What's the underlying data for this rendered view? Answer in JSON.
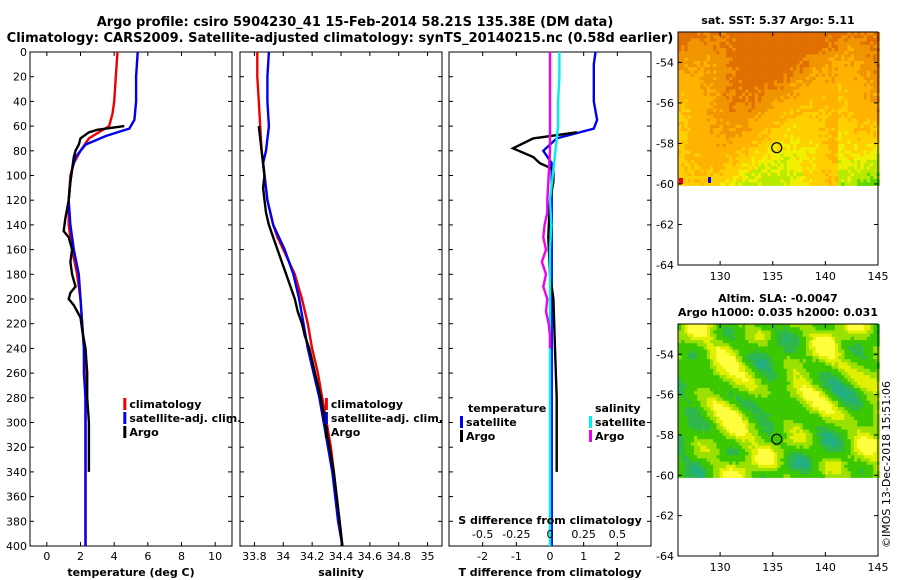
{
  "title_line1": "Argo profile: csiro 5904230_41 15-Feb-2014 58.21S 135.38E (DM data)",
  "title_line2": "Climatology: CARS2009. Satellite-adjusted climatology: synTS_20140215.nc (0.58d earlier)",
  "watermark": "©IMOS 13-Dec-2018 15:51:06",
  "depth_ticks": [
    0,
    20,
    40,
    60,
    80,
    100,
    120,
    140,
    160,
    180,
    200,
    220,
    240,
    260,
    280,
    300,
    320,
    340,
    360,
    380,
    400
  ],
  "colors": {
    "climatology": "#ee0000",
    "satellite": "#0000ee",
    "argo": "#000000",
    "sal_sat": "#00eeee",
    "sal_argo": "#ee00ee"
  },
  "chart_data": [
    {
      "type": "line",
      "name": "temperature",
      "xlabel": "temperature (deg C)",
      "xlim": [
        -1,
        11
      ],
      "ylim": [
        0,
        400
      ],
      "xticks": [
        0,
        2,
        4,
        6,
        8,
        10
      ],
      "xtick_labels": [
        "0",
        "2",
        "4",
        "6",
        "8",
        "10"
      ],
      "legend": [
        "climatology",
        "satellite-adj. clim.",
        "Argo"
      ],
      "series": [
        {
          "name": "climatology",
          "color": "#ee0000",
          "depth": [
            0,
            20,
            40,
            50,
            60,
            70,
            80,
            90,
            100,
            120,
            140,
            160,
            180,
            200,
            220,
            240,
            260,
            280,
            300,
            320,
            340,
            360,
            380,
            400
          ],
          "values": [
            4.2,
            4.1,
            4.0,
            3.9,
            3.7,
            2.5,
            2.0,
            1.6,
            1.4,
            1.3,
            1.3,
            1.5,
            1.8,
            2.0,
            2.1,
            2.2,
            2.25,
            2.3,
            2.3,
            2.3,
            2.3,
            2.3,
            2.3,
            2.3
          ]
        },
        {
          "name": "satellite-adj. clim.",
          "color": "#0000ee",
          "depth": [
            0,
            20,
            40,
            55,
            62,
            68,
            75,
            85,
            95,
            105,
            120,
            140,
            160,
            180,
            200,
            220,
            240,
            260,
            280,
            300,
            320,
            340,
            360,
            380,
            400
          ],
          "values": [
            5.4,
            5.3,
            5.3,
            5.2,
            4.9,
            3.5,
            2.3,
            1.7,
            1.5,
            1.4,
            1.3,
            1.4,
            1.6,
            1.9,
            2.0,
            2.1,
            2.2,
            2.2,
            2.3,
            2.3,
            2.3,
            2.3,
            2.3,
            2.3,
            2.3
          ]
        },
        {
          "name": "Argo",
          "color": "#000000",
          "depth": [
            60,
            63,
            65,
            70,
            75,
            80,
            85,
            95,
            105,
            120,
            135,
            145,
            150,
            160,
            170,
            180,
            190,
            195,
            200,
            205,
            215,
            225,
            240,
            260,
            280,
            300,
            320,
            340
          ],
          "values": [
            4.6,
            3.0,
            2.5,
            2.0,
            1.9,
            1.7,
            1.6,
            1.5,
            1.4,
            1.3,
            1.1,
            1.0,
            1.3,
            1.5,
            1.4,
            1.5,
            1.7,
            1.4,
            1.3,
            1.6,
            2.0,
            2.1,
            2.3,
            2.4,
            2.4,
            2.5,
            2.5,
            2.5
          ]
        }
      ]
    },
    {
      "type": "line",
      "name": "salinity",
      "xlabel": "salinity",
      "xlim": [
        33.7,
        35.1
      ],
      "ylim": [
        0,
        400
      ],
      "xticks": [
        33.8,
        34,
        34.2,
        34.4,
        34.6,
        34.8,
        35
      ],
      "xtick_labels": [
        "33.8",
        "34",
        "34.2",
        "34.4",
        "34.6",
        "34.8",
        "35"
      ],
      "legend": [
        "climatology",
        "satellite-adj. clim.",
        "Argo"
      ],
      "series": [
        {
          "name": "climatology",
          "color": "#ee0000",
          "depth": [
            0,
            20,
            40,
            60,
            80,
            100,
            120,
            140,
            150,
            160,
            180,
            200,
            220,
            240,
            260,
            280,
            300,
            320,
            340,
            360,
            380,
            400
          ],
          "values": [
            33.82,
            33.82,
            33.83,
            33.84,
            33.85,
            33.87,
            33.89,
            33.93,
            33.96,
            34.0,
            34.08,
            34.13,
            34.17,
            34.2,
            34.24,
            34.27,
            34.3,
            34.33,
            34.35,
            34.37,
            34.39,
            34.41
          ]
        },
        {
          "name": "satellite-adj. clim.",
          "color": "#0000ee",
          "depth": [
            0,
            20,
            40,
            60,
            80,
            90,
            100,
            120,
            140,
            160,
            180,
            200,
            220,
            240,
            260,
            280,
            300,
            320,
            340,
            360,
            380,
            400
          ],
          "values": [
            33.9,
            33.89,
            33.89,
            33.9,
            33.88,
            33.86,
            33.87,
            33.89,
            33.93,
            34.01,
            34.07,
            34.11,
            34.14,
            34.17,
            34.21,
            34.25,
            34.28,
            34.31,
            34.34,
            34.36,
            34.38,
            34.41
          ]
        },
        {
          "name": "Argo",
          "color": "#000000",
          "depth": [
            60,
            70,
            80,
            90,
            100,
            110,
            120,
            130,
            140,
            150,
            160,
            170,
            180,
            190,
            200,
            210,
            220,
            230,
            240,
            260,
            280,
            300,
            320,
            340,
            360,
            380,
            400
          ],
          "values": [
            33.83,
            33.84,
            33.85,
            33.86,
            33.87,
            33.86,
            33.87,
            33.88,
            33.9,
            33.93,
            33.96,
            33.99,
            34.02,
            34.05,
            34.08,
            34.1,
            34.13,
            34.15,
            34.18,
            34.22,
            34.26,
            34.29,
            34.32,
            34.35,
            34.37,
            34.39,
            34.41
          ]
        }
      ]
    },
    {
      "type": "line",
      "name": "difference",
      "xlabel": "T difference from climatology",
      "top_axis_label": "S difference from climatology",
      "xlim": [
        -3,
        3
      ],
      "ylim": [
        0,
        400
      ],
      "xticks": [
        -2,
        -1,
        0,
        1,
        2
      ],
      "xtick_labels": [
        "-2",
        "-1",
        "0",
        "1",
        "2"
      ],
      "s_ticks": [
        -0.5,
        -0.25,
        0,
        0.25,
        0.5
      ],
      "s_tick_labels": [
        "-0.5",
        "-0.25",
        "0",
        "0.25",
        "0.5"
      ],
      "legend_temperature_title": "temperature",
      "legend_salinity_title": "salinity",
      "legend_temperature": [
        "satellite",
        "Argo"
      ],
      "legend_salinity": [
        "satellite",
        "Argo"
      ],
      "series": [
        {
          "name": "T satellite",
          "color": "#0000ee",
          "depth": [
            0,
            10,
            20,
            40,
            55,
            62,
            70,
            80,
            90,
            100,
            120,
            140,
            160,
            180,
            200,
            240,
            280,
            320,
            360,
            400
          ],
          "values": [
            1.35,
            1.3,
            1.3,
            1.3,
            1.4,
            1.3,
            0.2,
            -0.2,
            0.05,
            0.05,
            0.05,
            0.05,
            0.05,
            0.05,
            0.05,
            0.05,
            0.05,
            0.05,
            0.05,
            0.05
          ]
        },
        {
          "name": "T Argo",
          "color": "#000000",
          "depth": [
            65,
            70,
            78,
            85,
            90,
            95,
            105,
            120,
            150,
            180,
            200,
            240,
            280,
            320,
            340
          ],
          "values": [
            0.8,
            -0.5,
            -1.1,
            -0.5,
            -0.3,
            0.1,
            0.1,
            0.0,
            -0.05,
            0.0,
            0.1,
            0.15,
            0.2,
            0.2,
            0.2
          ]
        },
        {
          "name": "S satellite",
          "color": "#00eeee",
          "depth": [
            0,
            20,
            40,
            60,
            80,
            100,
            120,
            140,
            160,
            180,
            200,
            220,
            240,
            280,
            320,
            360,
            400
          ],
          "values": [
            0.07,
            0.07,
            0.06,
            0.06,
            0.04,
            0.02,
            0.0,
            0.01,
            0.0,
            0.0,
            0.0,
            0.0,
            0.0,
            0.0,
            0.0,
            0.0,
            0.0
          ]
        },
        {
          "name": "S Argo",
          "color": "#ee00ee",
          "depth": [
            0,
            20,
            40,
            60,
            80,
            100,
            120,
            130,
            140,
            150,
            160,
            170,
            180,
            190,
            200,
            210,
            220,
            230,
            240
          ],
          "values": [
            0.0,
            0.0,
            0.0,
            0.0,
            0.0,
            -0.01,
            -0.02,
            -0.02,
            -0.04,
            -0.05,
            -0.03,
            -0.06,
            -0.03,
            -0.05,
            -0.02,
            -0.03,
            -0.01,
            0.0,
            0.0
          ]
        }
      ]
    },
    {
      "type": "heatmap",
      "name": "sst_map",
      "title": "sat. SST: 5.37 Argo: 5.11",
      "xlim": [
        126,
        145
      ],
      "ylim": [
        -64,
        -52.5
      ],
      "data_ylim": [
        -60,
        -52.5
      ],
      "xticks": [
        130,
        135,
        140,
        145
      ],
      "xtick_labels": [
        "130",
        "135",
        "140",
        "145"
      ],
      "yticks": [
        -54,
        -56,
        -58,
        -60,
        -62,
        -64
      ],
      "ytick_labels": [
        "-54",
        "-56",
        "-58",
        "-60",
        "-62",
        "-64"
      ],
      "argo_position": {
        "lon": 135.38,
        "lat": -58.21
      }
    },
    {
      "type": "heatmap",
      "name": "sla_map",
      "title_line1": "Altim. SLA: -0.0047",
      "title_line2": "Argo h1000: 0.035 h2000: 0.031",
      "xlim": [
        126,
        145
      ],
      "ylim": [
        -64,
        -52.5
      ],
      "data_ylim": [
        -60,
        -52.5
      ],
      "xticks": [
        130,
        135,
        140,
        145
      ],
      "xtick_labels": [
        "130",
        "135",
        "140",
        "145"
      ],
      "yticks": [
        -54,
        -56,
        -58,
        -60,
        -62,
        -64
      ],
      "ytick_labels": [
        "-54",
        "-56",
        "-58",
        "-60",
        "-62",
        "-64"
      ],
      "argo_position": {
        "lon": 135.38,
        "lat": -58.21
      }
    }
  ]
}
